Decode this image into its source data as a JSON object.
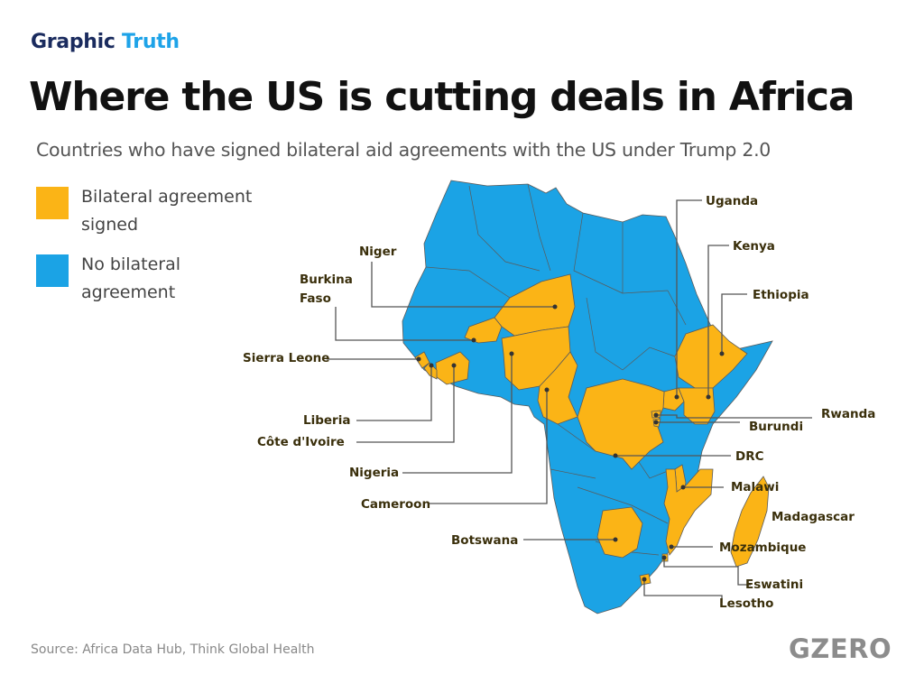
{
  "header": {
    "kicker_part1": "Graphic",
    "kicker_part2": "Truth",
    "title": "Where the US is cutting deals in Africa",
    "subtitle": "Countries who have signed bilateral aid agreements with the US under Trump 2.0"
  },
  "legend": {
    "signed": {
      "label": "Bilateral agreement signed",
      "color": "#FBB416"
    },
    "not_signed": {
      "label": "No bilateral agreement",
      "color": "#1BA3E5"
    }
  },
  "map": {
    "signed_countries": [
      "Uganda",
      "Kenya",
      "Ethiopia",
      "Niger",
      "Burkina Faso",
      "Sierra Leone",
      "Rwanda",
      "Burundi",
      "Liberia",
      "Côte d'Ivoire",
      "DRC",
      "Malawi",
      "Nigeria",
      "Madagascar",
      "Cameroon",
      "Botswana",
      "Mozambique",
      "Eswatini",
      "Lesotho"
    ],
    "labels": {
      "uganda": "Uganda",
      "kenya": "Kenya",
      "ethiopia": "Ethiopia",
      "niger": "Niger",
      "burkina_1": "Burkina",
      "burkina_2": "Faso",
      "sierra_leone": "Sierra Leone",
      "rwanda": "Rwanda",
      "burundi": "Burundi",
      "liberia": "Liberia",
      "cote_divoire": "Côte d'Ivoire",
      "drc": "DRC",
      "malawi": "Malawi",
      "nigeria": "Nigeria",
      "madagascar": "Madagascar",
      "cameroon": "Cameroon",
      "botswana": "Botswana",
      "mozambique": "Mozambique",
      "eswatini": "Eswatini",
      "lesotho": "Lesotho"
    },
    "leader_color": "#555555",
    "border_color": "#5a5a5a"
  },
  "footer": {
    "source": "Source: Africa Data Hub, Think Global Health",
    "logo": "GZERO"
  }
}
